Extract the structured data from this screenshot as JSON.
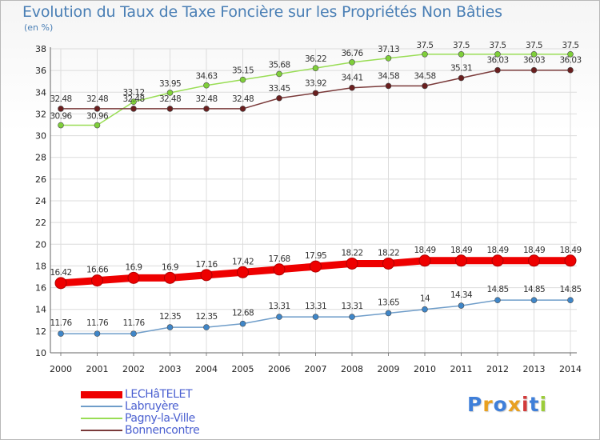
{
  "chart_data": {
    "type": "line",
    "title": "Evolution du Taux de Taxe Foncière sur les Propriétés Non Bâties",
    "ylabel": "(en %)",
    "xlabel": "",
    "ylim": [
      10,
      38
    ],
    "yticks": [
      10,
      12,
      14,
      16,
      18,
      20,
      22,
      24,
      26,
      28,
      30,
      32,
      34,
      36,
      38
    ],
    "grid": true,
    "categories": [
      "2000",
      "2001",
      "2002",
      "2003",
      "2004",
      "2005",
      "2006",
      "2007",
      "2008",
      "2009",
      "2010",
      "2011",
      "2012",
      "2013",
      "2014"
    ],
    "series": [
      {
        "name": "LECHâTELET",
        "color": "#ee0000",
        "marker": "#ee0000",
        "values": [
          16.42,
          16.66,
          16.9,
          16.9,
          17.16,
          17.42,
          17.68,
          17.95,
          18.22,
          18.22,
          18.49,
          18.49,
          18.49,
          18.49,
          18.49
        ],
        "labels": [
          "16.42",
          "16.66",
          "16.9",
          "16.9",
          "17.16",
          "17.42",
          "17.68",
          "17.95",
          "18.22",
          "18.22",
          "18.49",
          "18.49",
          "18.49",
          "18.49",
          "18.49"
        ]
      },
      {
        "name": "Labruyère",
        "color": "#6f9dc9",
        "marker": "#3f86c8",
        "values": [
          11.76,
          11.76,
          11.76,
          12.35,
          12.35,
          12.68,
          13.31,
          13.31,
          13.31,
          13.65,
          14,
          14.34,
          14.85,
          14.85,
          14.85
        ],
        "labels": [
          "11.76",
          "11.76",
          "11.76",
          "12.35",
          "12.35",
          "12.68",
          "13.31",
          "13.31",
          "13.31",
          "13.65",
          "14",
          "14.34",
          "14.85",
          "14.85",
          "14.85"
        ]
      },
      {
        "name": "Pagny-la-Ville",
        "color": "#99dd55",
        "marker": "#7fcf3a",
        "values": [
          30.96,
          30.96,
          33.12,
          33.95,
          34.63,
          35.15,
          35.68,
          36.22,
          36.76,
          37.13,
          37.5,
          37.5,
          37.5,
          37.5,
          37.5
        ],
        "labels": [
          "30.96",
          "30.96",
          "33.12",
          "33.95",
          "34.63",
          "35.15",
          "35.68",
          "36.22",
          "36.76",
          "37.13",
          "37.5",
          "37.5",
          "37.5",
          "37.5",
          "37.5"
        ]
      },
      {
        "name": "Bonnencontre",
        "color": "#7a3a3a",
        "marker": "#6a1f1f",
        "values": [
          32.48,
          32.48,
          32.48,
          32.48,
          32.48,
          32.48,
          33.45,
          33.92,
          34.41,
          34.58,
          34.58,
          35.31,
          36.03,
          36.03,
          36.03
        ],
        "labels": [
          "32.48",
          "32.48",
          "32.48",
          "32.48",
          "32.48",
          "32.48",
          "33.45",
          "33.92",
          "34.41",
          "34.58",
          "34.58",
          "35.31",
          "36.03",
          "36.03",
          "36.03"
        ]
      }
    ]
  },
  "legend": [
    {
      "name": "LECHâTELET"
    },
    {
      "name": "Labruyère"
    },
    {
      "name": "Pagny-la-Ville"
    },
    {
      "name": "Bonnencontre"
    }
  ],
  "logo": {
    "letters": [
      "P",
      "r",
      "o",
      "x",
      "i",
      "t",
      "i"
    ],
    "colors": [
      "#3f7fd9",
      "#e8a020",
      "#3f7fd9",
      "#e8a020",
      "#d23a3a",
      "#3f7fd9",
      "#9ccc3a"
    ]
  }
}
